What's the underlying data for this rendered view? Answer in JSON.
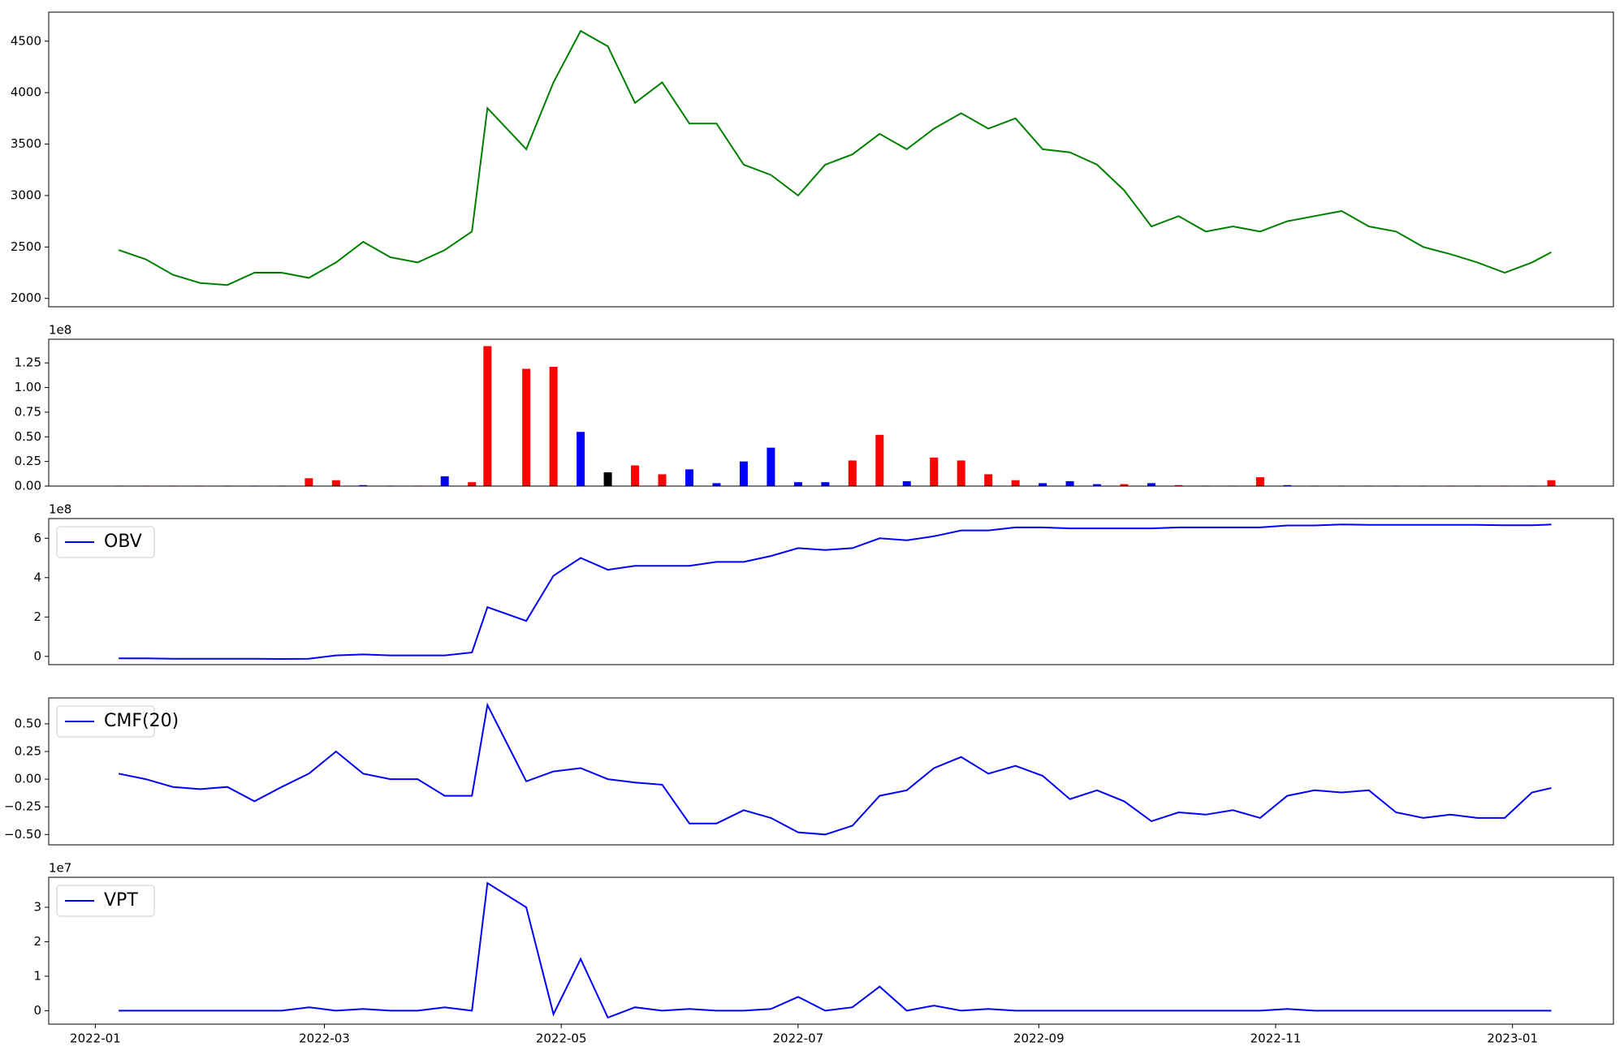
{
  "chart_data": [
    {
      "type": "line",
      "color": "green",
      "x": [
        "2022-01-07",
        "2022-01-14",
        "2022-01-21",
        "2022-01-28",
        "2022-02-04",
        "2022-02-11",
        "2022-02-18",
        "2022-02-25",
        "2022-03-04",
        "2022-03-11",
        "2022-03-18",
        "2022-03-25",
        "2022-04-01",
        "2022-04-08",
        "2022-04-12",
        "2022-04-22",
        "2022-04-29",
        "2022-05-06",
        "2022-05-13",
        "2022-05-20",
        "2022-05-27",
        "2022-06-03",
        "2022-06-10",
        "2022-06-17",
        "2022-06-24",
        "2022-07-01",
        "2022-07-08",
        "2022-07-15",
        "2022-07-22",
        "2022-07-29",
        "2022-08-05",
        "2022-08-12",
        "2022-08-19",
        "2022-08-26",
        "2022-09-02",
        "2022-09-09",
        "2022-09-16",
        "2022-09-23",
        "2022-09-30",
        "2022-10-07",
        "2022-10-14",
        "2022-10-21",
        "2022-10-28",
        "2022-11-04",
        "2022-11-11",
        "2022-11-18",
        "2022-11-25",
        "2022-12-02",
        "2022-12-09",
        "2022-12-16",
        "2022-12-23",
        "2022-12-30",
        "2023-01-06",
        "2023-01-11"
      ],
      "values": [
        2470,
        2380,
        2230,
        2150,
        2130,
        2250,
        2250,
        2200,
        2350,
        2550,
        2400,
        2350,
        2470,
        2650,
        3850,
        3450,
        4100,
        4600,
        4450,
        3900,
        4100,
        3700,
        3700,
        3300,
        3200,
        3000,
        3300,
        3400,
        3600,
        3450,
        3650,
        3800,
        3650,
        3750,
        3450,
        3420,
        3300,
        3050,
        2700,
        2800,
        2650,
        2700,
        2650,
        2750,
        2800,
        2850,
        2700,
        2650,
        2500,
        2430,
        2350,
        2250,
        2350,
        2450
      ],
      "xlim": [
        "2021-12-20",
        "2023-01-27"
      ],
      "ylim": [
        1919,
        4782
      ],
      "yticks": [
        2000,
        2500,
        3000,
        3500,
        4000,
        4500
      ]
    },
    {
      "type": "bar",
      "offset_label": "1e8",
      "x": [
        "2022-01-07",
        "2022-01-14",
        "2022-01-21",
        "2022-01-28",
        "2022-02-04",
        "2022-02-11",
        "2022-02-18",
        "2022-02-25",
        "2022-03-04",
        "2022-03-11",
        "2022-03-18",
        "2022-03-25",
        "2022-04-01",
        "2022-04-08",
        "2022-04-12",
        "2022-04-22",
        "2022-04-29",
        "2022-05-06",
        "2022-05-13",
        "2022-05-20",
        "2022-05-27",
        "2022-06-03",
        "2022-06-10",
        "2022-06-17",
        "2022-06-24",
        "2022-07-01",
        "2022-07-08",
        "2022-07-15",
        "2022-07-22",
        "2022-07-29",
        "2022-08-05",
        "2022-08-12",
        "2022-08-19",
        "2022-08-26",
        "2022-09-02",
        "2022-09-09",
        "2022-09-16",
        "2022-09-23",
        "2022-09-30",
        "2022-10-07",
        "2022-10-14",
        "2022-10-21",
        "2022-10-28",
        "2022-11-04",
        "2022-11-11",
        "2022-11-18",
        "2022-11-25",
        "2022-12-02",
        "2022-12-09",
        "2022-12-16",
        "2022-12-23",
        "2022-12-30",
        "2023-01-06",
        "2023-01-11"
      ],
      "values": [
        0.005,
        0.005,
        0.005,
        0.005,
        0.005,
        0.005,
        0.005,
        0.08,
        0.06,
        0.01,
        0.005,
        0.005,
        0.1,
        0.04,
        1.42,
        1.19,
        1.21,
        0.55,
        0.14,
        0.21,
        0.12,
        0.17,
        0.03,
        0.25,
        0.39,
        0.04,
        0.04,
        0.26,
        0.52,
        0.05,
        0.29,
        0.26,
        0.12,
        0.06,
        0.03,
        0.05,
        0.02,
        0.02,
        0.03,
        0.01,
        0.005,
        0.005,
        0.09,
        0.01,
        0.005,
        0.005,
        0.005,
        0.005,
        0.005,
        0.005,
        0.005,
        0.005,
        0.005,
        0.06
      ],
      "colors": [
        "blue",
        "red",
        "red",
        "red",
        "blue",
        "blue",
        "blue",
        "red",
        "red",
        "blue",
        "blue",
        "red",
        "blue",
        "red",
        "red",
        "red",
        "red",
        "blue",
        "black",
        "red",
        "red",
        "blue",
        "blue",
        "blue",
        "blue",
        "blue",
        "blue",
        "red",
        "red",
        "blue",
        "red",
        "red",
        "red",
        "red",
        "blue",
        "blue",
        "blue",
        "red",
        "blue",
        "red",
        "blue",
        "blue",
        "red",
        "blue",
        "blue",
        "blue",
        "blue",
        "blue",
        "red",
        "red",
        "blue",
        "red",
        "blue",
        "red"
      ],
      "xlim": [
        "2021-12-20",
        "2023-01-27"
      ],
      "ylim": [
        0,
        1.49
      ],
      "yticks": [
        {
          "value": 0,
          "label": "0.00"
        },
        {
          "value": 0.25,
          "label": "0.25"
        },
        {
          "value": 0.5,
          "label": "0.50"
        },
        {
          "value": 0.75,
          "label": "0.75"
        },
        {
          "value": 1,
          "label": "1.00"
        },
        {
          "value": 1.25,
          "label": "1.25"
        }
      ]
    },
    {
      "type": "line",
      "offset_label": "1e8",
      "legend": "upper left",
      "x": [
        "2022-01-07",
        "2022-01-14",
        "2022-01-21",
        "2022-01-28",
        "2022-02-04",
        "2022-02-11",
        "2022-02-18",
        "2022-02-25",
        "2022-03-04",
        "2022-03-11",
        "2022-03-18",
        "2022-03-25",
        "2022-04-01",
        "2022-04-08",
        "2022-04-12",
        "2022-04-22",
        "2022-04-29",
        "2022-05-06",
        "2022-05-13",
        "2022-05-20",
        "2022-05-27",
        "2022-06-03",
        "2022-06-10",
        "2022-06-17",
        "2022-06-24",
        "2022-07-01",
        "2022-07-08",
        "2022-07-15",
        "2022-07-22",
        "2022-07-29",
        "2022-08-05",
        "2022-08-12",
        "2022-08-19",
        "2022-08-26",
        "2022-09-02",
        "2022-09-09",
        "2022-09-16",
        "2022-09-23",
        "2022-09-30",
        "2022-10-07",
        "2022-10-14",
        "2022-10-21",
        "2022-10-28",
        "2022-11-04",
        "2022-11-11",
        "2022-11-18",
        "2022-11-25",
        "2022-12-02",
        "2022-12-09",
        "2022-12-16",
        "2022-12-23",
        "2022-12-30",
        "2023-01-06",
        "2023-01-11"
      ],
      "series": [
        {
          "name": "OBV",
          "color": "blue",
          "values": [
            -0.1,
            -0.1,
            -0.12,
            -0.12,
            -0.12,
            -0.12,
            -0.13,
            -0.12,
            0.05,
            0.1,
            0.05,
            0.05,
            0.05,
            0.2,
            2.5,
            1.8,
            4.1,
            5.0,
            4.4,
            4.6,
            4.6,
            4.6,
            4.8,
            4.8,
            5.1,
            5.5,
            5.4,
            5.5,
            6.0,
            5.9,
            6.1,
            6.4,
            6.4,
            6.55,
            6.55,
            6.5,
            6.5,
            6.5,
            6.5,
            6.55,
            6.55,
            6.55,
            6.55,
            6.65,
            6.65,
            6.7,
            6.68,
            6.68,
            6.68,
            6.68,
            6.68,
            6.66,
            6.66,
            6.7
          ]
        }
      ],
      "xlim": [
        "2021-12-20",
        "2023-01-27"
      ],
      "ylim": [
        -0.42,
        7.0
      ],
      "yticks": [
        0,
        2,
        4,
        6
      ]
    },
    {
      "type": "line",
      "legend": "upper left",
      "x": [
        "2022-01-07",
        "2022-01-14",
        "2022-01-21",
        "2022-01-28",
        "2022-02-04",
        "2022-02-11",
        "2022-02-18",
        "2022-02-25",
        "2022-03-04",
        "2022-03-11",
        "2022-03-18",
        "2022-03-25",
        "2022-04-01",
        "2022-04-08",
        "2022-04-12",
        "2022-04-22",
        "2022-04-29",
        "2022-05-06",
        "2022-05-13",
        "2022-05-20",
        "2022-05-27",
        "2022-06-03",
        "2022-06-10",
        "2022-06-17",
        "2022-06-24",
        "2022-07-01",
        "2022-07-08",
        "2022-07-15",
        "2022-07-22",
        "2022-07-29",
        "2022-08-05",
        "2022-08-12",
        "2022-08-19",
        "2022-08-26",
        "2022-09-02",
        "2022-09-09",
        "2022-09-16",
        "2022-09-23",
        "2022-09-30",
        "2022-10-07",
        "2022-10-14",
        "2022-10-21",
        "2022-10-28",
        "2022-11-04",
        "2022-11-11",
        "2022-11-18",
        "2022-11-25",
        "2022-12-02",
        "2022-12-09",
        "2022-12-16",
        "2022-12-23",
        "2022-12-30",
        "2023-01-06",
        "2023-01-11"
      ],
      "series": [
        {
          "name": "CMF(20)",
          "color": "blue",
          "values": [
            0.05,
            0.0,
            -0.07,
            -0.09,
            -0.07,
            -0.2,
            -0.07,
            0.05,
            0.25,
            0.05,
            0.0,
            0.0,
            -0.15,
            -0.15,
            0.67,
            -0.02,
            0.07,
            0.1,
            0.0,
            -0.03,
            -0.05,
            -0.4,
            -0.4,
            -0.28,
            -0.35,
            -0.48,
            -0.5,
            -0.42,
            -0.15,
            -0.1,
            0.1,
            0.2,
            0.05,
            0.12,
            0.03,
            -0.18,
            -0.1,
            -0.2,
            -0.38,
            -0.3,
            -0.32,
            -0.28,
            -0.35,
            -0.15,
            -0.1,
            -0.12,
            -0.1,
            -0.3,
            -0.35,
            -0.32,
            -0.35,
            -0.35,
            -0.12,
            -0.08
          ]
        }
      ],
      "xlim": [
        "2021-12-20",
        "2023-01-27"
      ],
      "ylim": [
        -0.593,
        0.734
      ],
      "yticks": [
        {
          "value": -0.5,
          "label": "−0.50"
        },
        {
          "value": -0.25,
          "label": "−0.25"
        },
        {
          "value": 0,
          "label": "0.00"
        },
        {
          "value": 0.25,
          "label": "0.25"
        },
        {
          "value": 0.5,
          "label": "0.50"
        }
      ]
    },
    {
      "type": "line",
      "offset_label": "1e7",
      "legend": "upper left",
      "x": [
        "2022-01-07",
        "2022-01-14",
        "2022-01-21",
        "2022-01-28",
        "2022-02-04",
        "2022-02-11",
        "2022-02-18",
        "2022-02-25",
        "2022-03-04",
        "2022-03-11",
        "2022-03-18",
        "2022-03-25",
        "2022-04-01",
        "2022-04-08",
        "2022-04-12",
        "2022-04-22",
        "2022-04-29",
        "2022-05-06",
        "2022-05-13",
        "2022-05-20",
        "2022-05-27",
        "2022-06-03",
        "2022-06-10",
        "2022-06-17",
        "2022-06-24",
        "2022-07-01",
        "2022-07-08",
        "2022-07-15",
        "2022-07-22",
        "2022-07-29",
        "2022-08-05",
        "2022-08-12",
        "2022-08-19",
        "2022-08-26",
        "2022-09-02",
        "2022-09-09",
        "2022-09-16",
        "2022-09-23",
        "2022-09-30",
        "2022-10-07",
        "2022-10-14",
        "2022-10-21",
        "2022-10-28",
        "2022-11-04",
        "2022-11-11",
        "2022-11-18",
        "2022-11-25",
        "2022-12-02",
        "2022-12-09",
        "2022-12-16",
        "2022-12-23",
        "2022-12-30",
        "2023-01-06",
        "2023-01-11"
      ],
      "series": [
        {
          "name": "VPT",
          "color": "blue",
          "values": [
            0,
            0,
            0,
            0,
            0,
            0,
            0,
            0.1,
            0,
            0.05,
            0,
            0,
            0.1,
            0,
            3.7,
            3.0,
            -0.1,
            1.5,
            -0.2,
            0.1,
            0,
            0.05,
            0,
            0,
            0.05,
            0.4,
            0,
            0.1,
            0.7,
            0,
            0.15,
            0,
            0.05,
            0,
            0,
            0,
            0,
            0,
            0,
            0,
            0,
            0,
            0,
            0.05,
            0,
            0,
            0,
            0,
            0,
            0,
            0,
            0,
            0,
            0
          ]
        }
      ],
      "xlim": [
        "2021-12-20",
        "2023-01-27"
      ],
      "ylim": [
        -0.39,
        3.87
      ],
      "yticks": [
        0,
        1,
        2,
        3
      ],
      "xticks": [
        "2022-01",
        "2022-03",
        "2022-05",
        "2022-07",
        "2022-09",
        "2022-11",
        "2023-01"
      ]
    }
  ]
}
